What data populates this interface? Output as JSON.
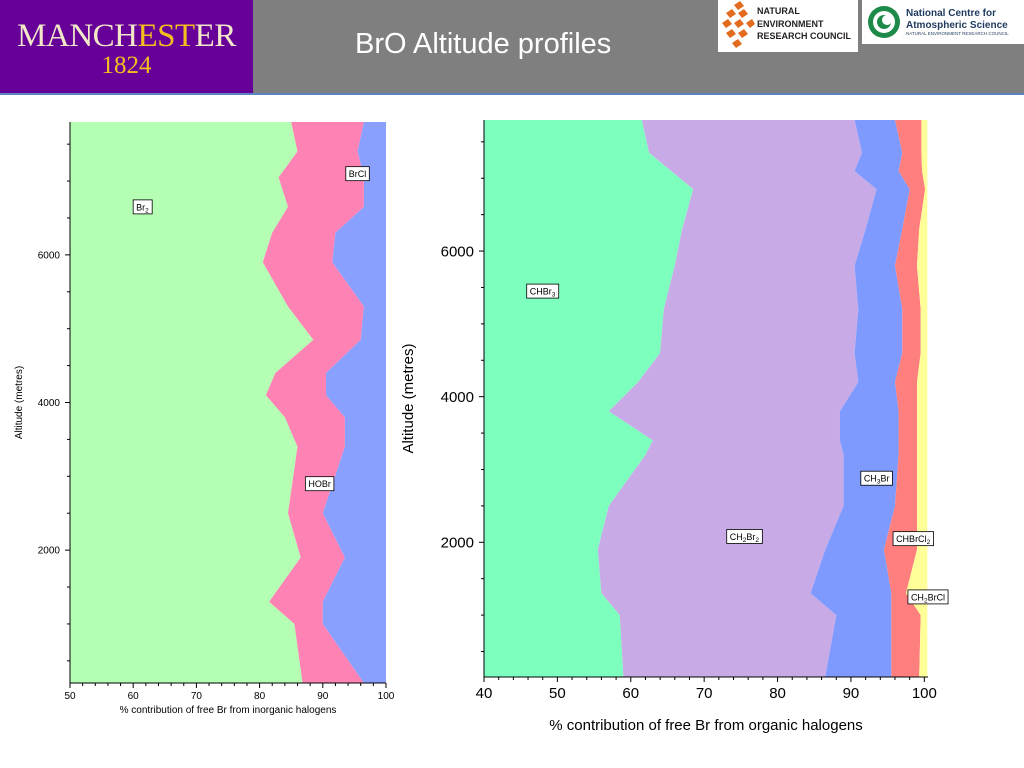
{
  "header": {
    "title": "BrO Altitude profiles",
    "uom_logo_text": "MANCHESTER",
    "uom_logo_year": "1824",
    "nerc_logo_lines": [
      "NATURAL",
      "ENVIRONMENT",
      "RESEARCH COUNCIL"
    ],
    "ncas_logo_lines": [
      "National Centre for",
      "Atmospheric Science"
    ],
    "ncas_logo_sub": "NATURAL ENVIRONMENT RESEARCH COUNCIL",
    "colors": {
      "bar": "#7f7f7f",
      "uom_purple": "#660099",
      "uom_gold": "#f2c01e",
      "nerc_orange": "#e36b1d",
      "ncas_green": "#1e8a4a"
    }
  },
  "chart_data": [
    {
      "type": "area",
      "orientation": "horizontal-stacked-cumulative",
      "xlabel": "% contribution of free Br from inorganic halogens",
      "ylabel": "Altitude (metres)",
      "xlim": [
        50,
        100
      ],
      "ylim": [
        200,
        7800
      ],
      "xticks": [
        50,
        60,
        70,
        80,
        90,
        100
      ],
      "yticks": [
        2000,
        4000,
        6000
      ],
      "grid": false,
      "altitude": [
        200,
        1000,
        1300,
        1900,
        2500,
        3400,
        3800,
        4100,
        4400,
        4850,
        5300,
        5900,
        6300,
        6650,
        7050,
        7400,
        7800
      ],
      "series": [
        {
          "name": "Br2",
          "color": "#b4ffb4",
          "upper": [
            86.8,
            85.5,
            81.5,
            86.5,
            84.5,
            86,
            84,
            81,
            82.5,
            88.5,
            84.5,
            80.5,
            82,
            84.5,
            83,
            86,
            85
          ]
        },
        {
          "name": "HOBr",
          "color": "#ff82b4",
          "upper": [
            96.5,
            90,
            90,
            93.5,
            90,
            93.5,
            93.5,
            90.5,
            90.5,
            96,
            96.5,
            91.5,
            92,
            96.5,
            96.5,
            95.5,
            96.5
          ]
        },
        {
          "name": "BrCl",
          "color": "#8aa0ff",
          "upper": [
            100,
            100,
            100,
            100,
            100,
            100,
            100,
            100,
            100,
            100,
            100,
            100,
            100,
            100,
            100,
            100,
            100
          ]
        }
      ],
      "labels": [
        {
          "text": "Br",
          "sub": "2",
          "x": 61.5,
          "y": 6650
        },
        {
          "text": "BrCl",
          "sub": "",
          "x": 95.5,
          "y": 7100
        },
        {
          "text": "HOBr",
          "sub": "",
          "x": 89.5,
          "y": 2900
        }
      ]
    },
    {
      "type": "area",
      "orientation": "horizontal-stacked-cumulative",
      "xlabel": "% contribution of free Br from organic halogens",
      "ylabel": "Altitude (metres)",
      "xlim": [
        40,
        100.5
      ],
      "ylim": [
        150,
        7800
      ],
      "xticks": [
        40,
        50,
        60,
        70,
        80,
        90,
        100
      ],
      "yticks": [
        2000,
        4000,
        6000
      ],
      "grid": false,
      "altitude": [
        150,
        1000,
        1300,
        1900,
        2500,
        3200,
        3400,
        3800,
        4200,
        4600,
        5200,
        5800,
        6300,
        6850,
        7100,
        7350,
        7800
      ],
      "series": [
        {
          "name": "CHBr3",
          "color": "#7dffbe",
          "upper": [
            59,
            58.5,
            56,
            55.5,
            57,
            62,
            63,
            57,
            61,
            64,
            64.5,
            66,
            67,
            68.5,
            65.5,
            62.5,
            61.5
          ]
        },
        {
          "name": "CH2Br2",
          "color": "#c8aae6",
          "upper": [
            86.5,
            88,
            84.5,
            86.5,
            89,
            89,
            88.5,
            88.5,
            91,
            90.5,
            91,
            90.5,
            92,
            93.5,
            90.5,
            91.5,
            90.5
          ]
        },
        {
          "name": "CH3Br",
          "color": "#7f9aff",
          "upper": [
            95.5,
            95.5,
            95.5,
            94.5,
            96,
            96.5,
            96.5,
            96.5,
            96,
            97,
            97,
            96,
            97,
            98,
            96.5,
            97,
            96
          ]
        },
        {
          "name": "CHBrCl2",
          "color": "#ff7f7f",
          "upper": [
            99.3,
            99.5,
            97.5,
            99,
            99,
            99,
            99,
            99,
            99,
            99.5,
            99.5,
            99,
            99.3,
            100.1,
            99.7,
            99.6,
            99.6
          ]
        },
        {
          "name": "CH2BrCl",
          "color": "#ffff99",
          "upper": [
            100.4,
            100.4,
            100.4,
            100.4,
            100.4,
            100.4,
            100.4,
            100.4,
            100.4,
            100.4,
            100.4,
            100.4,
            100.4,
            100.4,
            100.4,
            100.4,
            100.4
          ]
        }
      ],
      "labels": [
        {
          "text": "CHBr",
          "sub": "3",
          "x": 48,
          "y": 5450
        },
        {
          "text": "CH",
          "sub": "2",
          "text2": "Br",
          "sub2": "2",
          "x": 75.5,
          "y": 2080
        },
        {
          "text": "CH",
          "sub": "3",
          "text2": "Br",
          "sub2": "",
          "x": 93.5,
          "y": 2880
        },
        {
          "text": "CHBrCl",
          "sub": "2",
          "x": 98.5,
          "y": 2050
        },
        {
          "text": "CH",
          "sub": "2",
          "text2": "BrCl",
          "sub2": "",
          "x": 100.5,
          "y": 1250
        }
      ]
    }
  ]
}
